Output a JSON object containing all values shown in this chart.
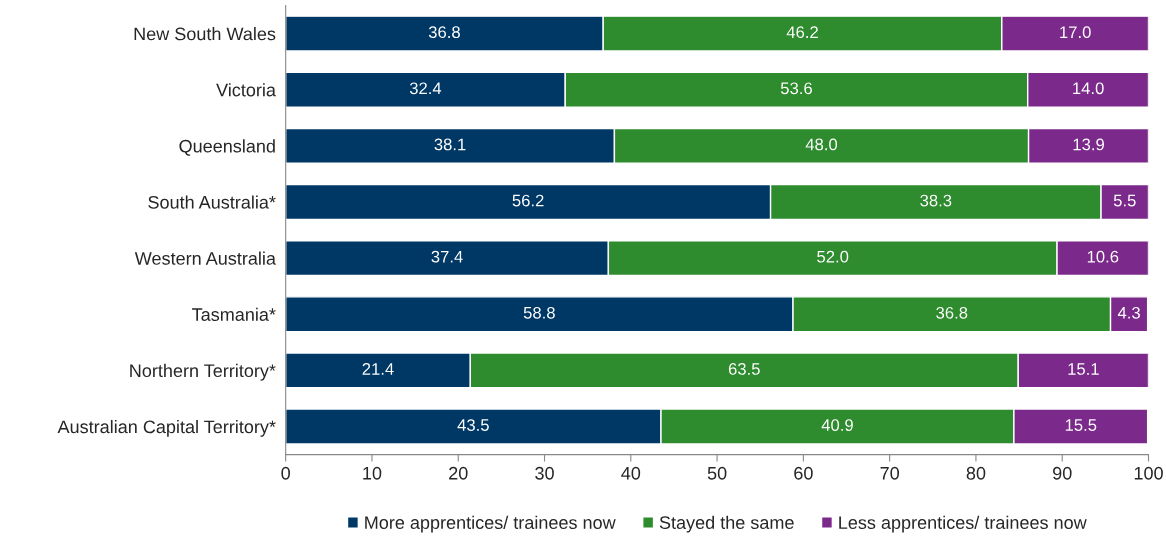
{
  "chart_data": {
    "type": "bar",
    "orientation": "horizontal",
    "stacked": true,
    "categories": [
      "New South Wales",
      "Victoria",
      "Queensland",
      "South Australia*",
      "Western Australia",
      "Tasmania*",
      "Northern Territory*",
      "Australian Capital Territory*"
    ],
    "series": [
      {
        "name": "More apprentices/ trainees now",
        "color": "#003865",
        "values": [
          36.8,
          32.4,
          38.1,
          56.2,
          37.4,
          58.8,
          21.4,
          43.5
        ]
      },
      {
        "name": "Stayed the same",
        "color": "#2e8b2e",
        "values": [
          46.2,
          53.6,
          48.0,
          38.3,
          52.0,
          36.8,
          63.5,
          40.9
        ],
        "value_labels": [
          "46.2",
          "53.6",
          "48.0",
          "38.3",
          "52.0",
          "36.8",
          "63.5",
          "40.9"
        ]
      },
      {
        "name": "Less apprentices/ trainees now",
        "color": "#7b2a8b",
        "values": [
          17.0,
          14.0,
          13.9,
          5.5,
          10.6,
          4.3,
          15.1,
          15.5
        ],
        "value_labels": [
          "17.0",
          "14.0",
          "13.9",
          "5.5",
          "10.6",
          "4.3",
          "15.1",
          "15.5"
        ]
      }
    ],
    "data_labels": true,
    "xlim": [
      0,
      100
    ],
    "xticks": [
      0,
      10,
      20,
      30,
      40,
      50,
      60,
      70,
      80,
      90,
      100
    ],
    "grid": false,
    "legend": "bottom"
  }
}
